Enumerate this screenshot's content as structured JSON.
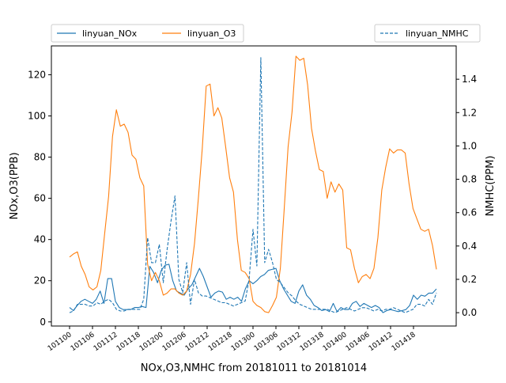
{
  "chart_data": {
    "type": "line",
    "xlabel": "NOx,O3,NMHC from 20181011 to 20181014",
    "ylabel_left": "NOx,O3(PPB)",
    "ylabel_right": "NMHC(PPM)",
    "ylim_left": [
      -2,
      134
    ],
    "ylim_right": [
      -0.08,
      1.6
    ],
    "yticks_left": [
      0,
      20,
      40,
      60,
      80,
      100,
      120
    ],
    "yticks_right": [
      "0.0",
      "0.2",
      "0.4",
      "0.6",
      "0.8",
      "1.0",
      "1.2",
      "1.4"
    ],
    "xtick_labels": [
      "101100",
      "101106",
      "101112",
      "101118",
      "101200",
      "101206",
      "101212",
      "101218",
      "101300",
      "101306",
      "101312",
      "101318",
      "101400",
      "101406",
      "101412",
      "101418"
    ],
    "xtick_index_step": 6,
    "legend_left": "top-left",
    "legend_right": "top-right",
    "grid": false,
    "series": [
      {
        "name": "linyuan_NOx",
        "axis": "left",
        "color": "#1f77b4",
        "dash": "solid",
        "values": [
          7,
          5.5,
          8,
          10,
          11,
          10,
          9,
          11,
          15,
          9,
          21,
          21,
          10,
          7,
          6,
          6,
          6,
          7,
          7,
          7.5,
          7,
          27,
          24,
          19,
          25,
          27.5,
          28,
          20,
          15,
          14,
          13,
          16,
          18,
          22,
          26,
          22,
          17,
          12,
          14,
          15,
          14.5,
          11,
          12,
          11,
          12,
          10,
          16,
          20,
          18.5,
          20,
          22,
          23,
          25,
          25.5,
          26,
          20,
          16,
          13,
          10,
          9,
          15,
          18,
          13,
          11,
          8,
          7,
          5.5,
          6,
          5,
          9,
          5,
          7,
          6,
          6,
          9,
          10,
          7.5,
          9,
          8,
          7,
          8,
          7,
          4.5,
          5.5,
          6,
          5.5,
          5,
          5.5,
          6,
          8,
          13,
          11,
          13,
          12.5,
          14,
          14,
          16
        ]
      },
      {
        "name": "linyuan_O3",
        "axis": "left",
        "color": "#ff7f0e",
        "dash": "solid",
        "values": [
          31.5,
          33,
          34,
          27,
          23,
          17,
          15.5,
          17,
          25,
          43,
          61,
          90,
          103,
          95,
          96,
          92,
          81,
          79,
          70,
          66,
          28,
          20,
          24,
          20,
          13,
          14,
          16,
          16,
          14,
          13,
          15,
          23,
          38,
          60,
          84,
          114.5,
          115.5,
          100,
          104,
          99,
          85,
          70,
          63,
          40,
          25,
          24,
          21,
          10,
          8,
          7,
          5,
          4.5,
          8,
          12,
          26,
          55,
          85,
          102,
          129,
          127,
          128,
          115,
          94,
          83,
          74,
          73,
          60,
          68,
          63,
          67,
          64,
          36,
          35,
          26,
          19,
          22,
          23,
          21,
          26,
          41,
          64,
          75,
          84,
          82,
          83.5,
          83.5,
          82,
          67,
          55,
          50,
          45,
          44,
          45,
          37,
          25.5
        ]
      },
      {
        "name": "linyuan_NMHC",
        "axis": "right",
        "color": "#1f77b4",
        "dash": "dashed",
        "values": [
          0.0,
          0.01,
          0.05,
          0.05,
          0.05,
          0.04,
          0.04,
          0.06,
          0.05,
          0.07,
          0.08,
          0.06,
          0.02,
          0.01,
          0.01,
          0.02,
          0.02,
          0.02,
          0.02,
          0.08,
          0.45,
          0.3,
          0.3,
          0.41,
          0.18,
          0.38,
          0.55,
          0.7,
          0.2,
          0.12,
          0.3,
          0.05,
          0.2,
          0.12,
          0.1,
          0.1,
          0.09,
          0.08,
          0.07,
          0.06,
          0.06,
          0.05,
          0.04,
          0.05,
          0.06,
          0.07,
          0.2,
          0.5,
          0.28,
          1.53,
          0.3,
          0.38,
          0.3,
          0.2,
          0.18,
          0.15,
          0.12,
          0.1,
          0.07,
          0.05,
          0.04,
          0.03,
          0.02,
          0.02,
          0.02,
          0.02,
          0.02,
          0.01,
          0.0,
          0.01,
          0.02,
          0.03,
          0.02,
          0.01,
          0.02,
          0.03,
          0.03,
          0.02,
          0.01,
          0.02,
          0.01,
          0.02,
          0.02,
          0.03,
          0.02,
          0.01,
          0.0,
          0.01,
          0.02,
          0.05,
          0.05,
          0.04,
          0.08,
          0.05,
          0.12
        ]
      }
    ]
  }
}
